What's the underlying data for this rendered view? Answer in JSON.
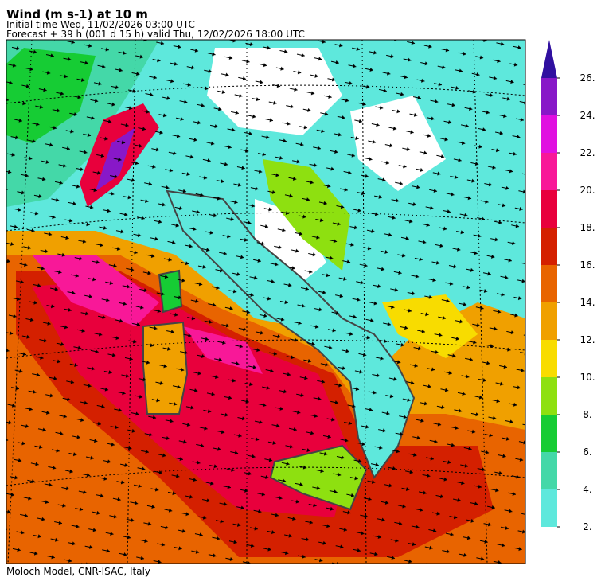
{
  "header": {
    "title": "Wind (m s-1) at 10 m",
    "initial_time": "Initial time  Wed, 11/02/2026  03:00 UTC",
    "forecast": "Forecast  +  39 h  (001 d 15 h)  valid Thu, 12/02/2026 18:00 UTC"
  },
  "colorbar": {
    "ticks": [
      {
        "value": 2,
        "label": "2."
      },
      {
        "value": 4,
        "label": "4."
      },
      {
        "value": 6,
        "label": "6."
      },
      {
        "value": 8,
        "label": "8."
      },
      {
        "value": 10,
        "label": "10."
      },
      {
        "value": 12,
        "label": "12."
      },
      {
        "value": 14,
        "label": "14."
      },
      {
        "value": 16,
        "label": "16."
      },
      {
        "value": 18,
        "label": "18."
      },
      {
        "value": 20,
        "label": "20."
      },
      {
        "value": 22,
        "label": "22."
      },
      {
        "value": 24,
        "label": "24."
      },
      {
        "value": 26,
        "label": "26."
      }
    ],
    "colors": [
      "#5ee8dc",
      "#44d8a8",
      "#16cc34",
      "#8ee010",
      "#f8dc00",
      "#f0a000",
      "#e86400",
      "#d42000",
      "#e8003c",
      "#f81898",
      "#e010e0",
      "#8818c8"
    ],
    "extend_color": "#3010a0"
  },
  "footer": "Moloch Model, CNR-ISAC, Italy"
}
